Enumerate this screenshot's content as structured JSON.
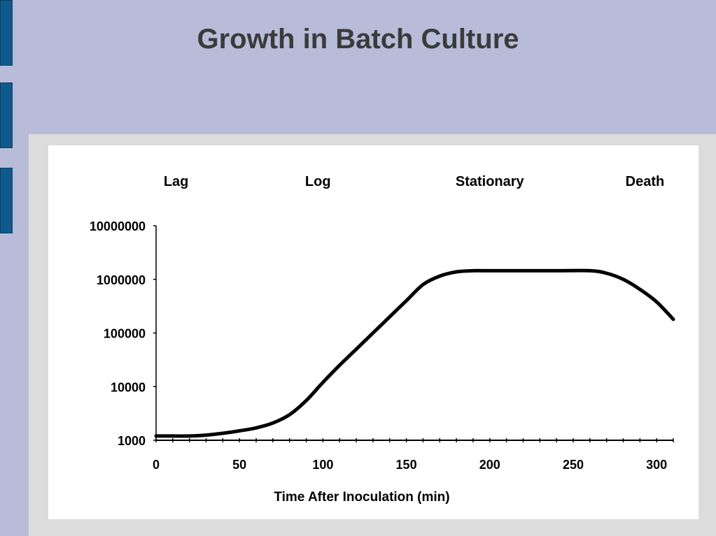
{
  "slide": {
    "title": "Growth in Batch Culture",
    "background_color": "#b8bcd8",
    "accent_color": "#0f5a8c"
  },
  "chart_data": {
    "type": "line",
    "title": "",
    "xlabel": "Time After Inoculation (min)",
    "ylabel": "",
    "xlim": [
      0,
      310
    ],
    "ylim": [
      1000,
      10000000
    ],
    "y_scale": "log",
    "x_ticks": [
      0,
      50,
      100,
      150,
      200,
      250,
      300
    ],
    "x_tick_labels": [
      "0",
      "50",
      "100",
      "150",
      "200",
      "250",
      "300"
    ],
    "y_ticks": [
      1000,
      10000,
      100000,
      1000000,
      10000000
    ],
    "y_tick_labels": [
      "1000",
      "10000",
      "100000",
      "1000000",
      "10000000"
    ],
    "phase_labels": [
      {
        "text": "Lag",
        "x": 12
      },
      {
        "text": "Log",
        "x": 97
      },
      {
        "text": "Stationary",
        "x": 200
      },
      {
        "text": "Death",
        "x": 293
      }
    ],
    "grid": false,
    "series": [
      {
        "x": [
          0,
          10,
          20,
          30,
          40,
          50,
          60,
          70,
          80,
          90,
          100,
          110,
          120,
          130,
          140,
          150,
          160,
          170,
          180,
          190,
          200,
          220,
          240,
          260,
          270,
          280,
          290,
          300,
          310
        ],
        "values": [
          1200,
          1200,
          1200,
          1250,
          1350,
          1500,
          1700,
          2100,
          3000,
          5500,
          12000,
          25000,
          50000,
          100000,
          200000,
          400000,
          800000,
          1150000,
          1380000,
          1450000,
          1450000,
          1450000,
          1450000,
          1450000,
          1300000,
          1000000,
          650000,
          380000,
          180000
        ]
      }
    ]
  }
}
